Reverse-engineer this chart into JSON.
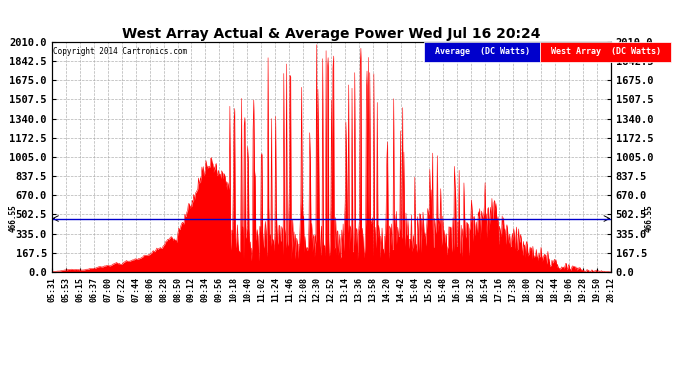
{
  "title": "West Array Actual & Average Power Wed Jul 16 20:24",
  "copyright": "Copyright 2014 Cartronics.com",
  "legend_avg": "Average  (DC Watts)",
  "legend_west": "West Array  (DC Watts)",
  "avg_value": 466.55,
  "ylim": [
    0.0,
    2010.0
  ],
  "yticks": [
    0.0,
    167.5,
    335.0,
    502.5,
    670.0,
    837.5,
    1005.0,
    1172.5,
    1340.0,
    1507.5,
    1675.0,
    1842.5,
    2010.0
  ],
  "bg_color": "#ffffff",
  "fill_color": "#ff0000",
  "avg_line_color": "#0000cc",
  "grid_color": "#aaaaaa",
  "title_color": "#000000",
  "tick_label_size": 6.0,
  "ytick_label_size": 7.5,
  "time_labels": [
    "05:31",
    "05:53",
    "06:15",
    "06:37",
    "07:00",
    "07:22",
    "07:44",
    "08:06",
    "08:28",
    "08:50",
    "09:12",
    "09:34",
    "09:56",
    "10:18",
    "10:40",
    "11:02",
    "11:24",
    "11:46",
    "12:08",
    "12:30",
    "12:52",
    "13:14",
    "13:36",
    "13:58",
    "14:20",
    "14:42",
    "15:04",
    "15:26",
    "15:48",
    "16:10",
    "16:32",
    "16:54",
    "17:16",
    "17:38",
    "18:00",
    "18:22",
    "18:44",
    "19:06",
    "19:28",
    "19:50",
    "20:12"
  ]
}
